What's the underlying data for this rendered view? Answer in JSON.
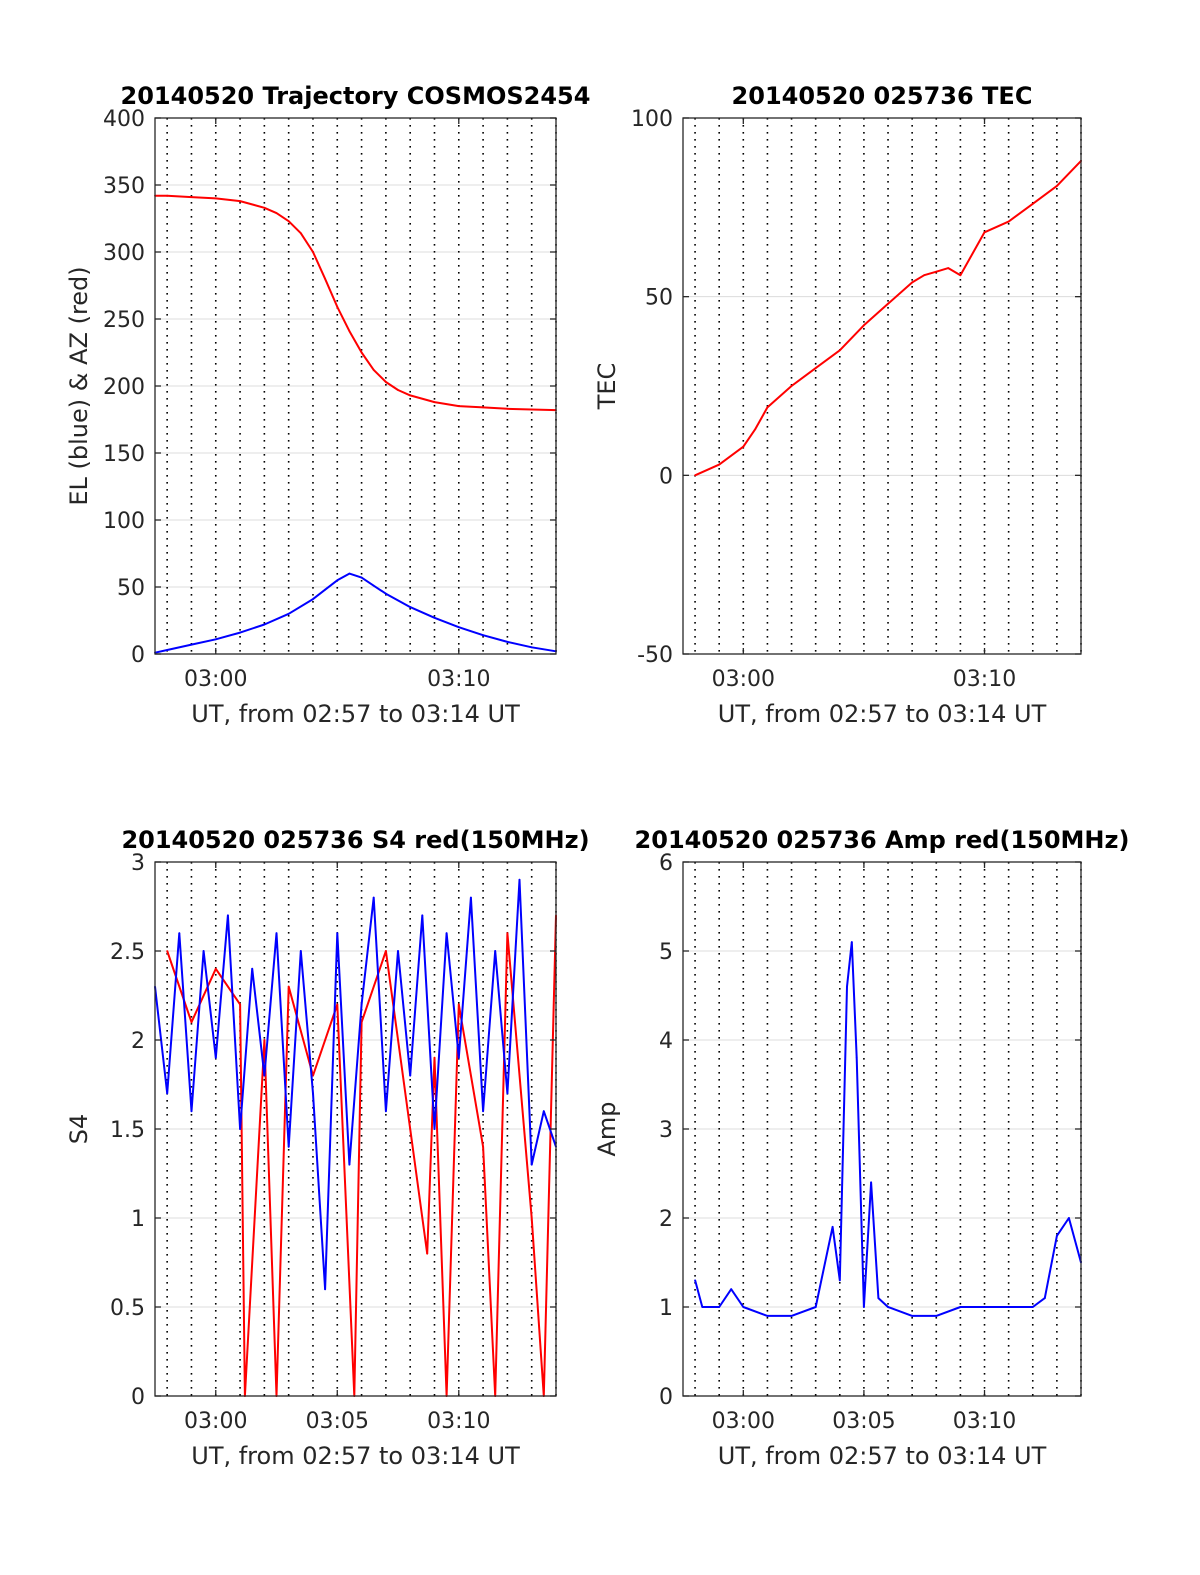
{
  "chart_data": [
    {
      "type": "line",
      "title": "20140520 Trajectory COSMOS2454",
      "xlabel": "UT, from 02:57 to 03:14 UT",
      "ylabel": "EL (blue) & AZ (red)",
      "xlim": [
        177.5,
        194
      ],
      "ylim": [
        0,
        400
      ],
      "yticks": [
        0,
        50,
        100,
        150,
        200,
        250,
        300,
        350,
        400
      ],
      "xticks": [
        {
          "value": 180,
          "label": "03:00"
        },
        {
          "value": 190,
          "label": "03:10"
        }
      ],
      "grid": "horizontal major, dotted vertical every minute",
      "series": [
        {
          "color": "#ff0000",
          "x": [
            177.5,
            178,
            179,
            180,
            181,
            182,
            182.5,
            183,
            183.5,
            184,
            184.5,
            185,
            185.5,
            186,
            186.5,
            187,
            187.5,
            188,
            189,
            190,
            191,
            192,
            193,
            194
          ],
          "values": [
            342,
            342,
            341,
            340,
            338,
            333,
            329,
            323,
            314,
            300,
            280,
            259,
            241,
            225,
            212,
            203,
            197,
            193,
            188,
            185,
            184,
            183,
            182.5,
            182
          ]
        },
        {
          "color": "#0000ff",
          "x": [
            177.5,
            178,
            179,
            180,
            181,
            182,
            183,
            184,
            184.5,
            185,
            185.5,
            186,
            186.5,
            187,
            188,
            189,
            190,
            191,
            192,
            193,
            194
          ],
          "values": [
            1,
            3,
            7,
            11,
            16,
            22,
            30,
            41,
            48,
            55,
            60,
            57,
            51,
            45,
            35,
            27,
            20,
            14,
            9,
            5,
            2
          ]
        }
      ]
    },
    {
      "type": "line",
      "title": "20140520 025736 TEC",
      "xlabel": "UT, from 02:57 to 03:14 UT",
      "ylabel": "TEC",
      "xlim": [
        177.5,
        194
      ],
      "ylim": [
        -50,
        100
      ],
      "yticks": [
        -50,
        0,
        50,
        100
      ],
      "xticks": [
        {
          "value": 180,
          "label": "03:00"
        },
        {
          "value": 190,
          "label": "03:10"
        }
      ],
      "grid": "horizontal major, dotted vertical every minute",
      "series": [
        {
          "color": "#ff0000",
          "x": [
            178,
            179,
            180,
            180.5,
            181,
            182,
            183,
            184,
            185,
            186,
            187,
            187.5,
            188,
            188.5,
            189,
            190,
            191,
            192,
            193,
            194
          ],
          "values": [
            0,
            3,
            8,
            13,
            19,
            25,
            30,
            35,
            42,
            48,
            54,
            56,
            57,
            58,
            56,
            68,
            71,
            76,
            81,
            88
          ]
        }
      ]
    },
    {
      "type": "line",
      "title": "20140520 025736 S4 red(150MHz)",
      "xlabel": "UT, from 02:57 to 03:14 UT",
      "ylabel": "S4",
      "xlim": [
        177.5,
        194
      ],
      "ylim": [
        0,
        3
      ],
      "yticks": [
        0,
        0.5,
        1,
        1.5,
        2,
        2.5,
        3
      ],
      "xticks": [
        {
          "value": 180,
          "label": "03:00"
        },
        {
          "value": 185,
          "label": "03:05"
        },
        {
          "value": 190,
          "label": "03:10"
        }
      ],
      "grid": "horizontal major, dotted vertical every minute",
      "series": [
        {
          "color": "#ff0000",
          "x": [
            178,
            179,
            180,
            181,
            181.2,
            182,
            182.5,
            183,
            184,
            185,
            185.7,
            186,
            187,
            188,
            188.7,
            189,
            189.5,
            190,
            191,
            191.5,
            192,
            193,
            193.5,
            194
          ],
          "values": [
            2.5,
            2.1,
            2.4,
            2.2,
            0,
            2.0,
            0,
            2.3,
            1.8,
            2.2,
            0,
            2.1,
            2.5,
            1.5,
            0.8,
            1.9,
            0,
            2.2,
            1.4,
            0,
            2.6,
            1.0,
            0,
            2.7
          ]
        },
        {
          "color": "#0000ff",
          "x": [
            177.5,
            178,
            178.5,
            179,
            179.5,
            180,
            180.5,
            181,
            181.5,
            182,
            182.5,
            183,
            183.5,
            184,
            184.5,
            185,
            185.5,
            186,
            186.5,
            187,
            187.5,
            188,
            188.5,
            189,
            189.5,
            190,
            190.5,
            191,
            191.5,
            192,
            192.5,
            193,
            193.5,
            194
          ],
          "values": [
            2.3,
            1.7,
            2.6,
            1.6,
            2.5,
            1.9,
            2.7,
            1.5,
            2.4,
            1.8,
            2.6,
            1.4,
            2.5,
            1.7,
            0.6,
            2.6,
            1.3,
            2.2,
            2.8,
            1.6,
            2.5,
            1.8,
            2.7,
            1.5,
            2.6,
            1.9,
            2.8,
            1.6,
            2.5,
            1.7,
            2.9,
            1.3,
            1.6,
            1.4
          ]
        }
      ]
    },
    {
      "type": "line",
      "title": "20140520 025736 Amp red(150MHz)",
      "xlabel": "UT, from 02:57 to 03:14 UT",
      "ylabel": "Amp",
      "xlim": [
        177.5,
        194
      ],
      "ylim": [
        0,
        6
      ],
      "yticks": [
        0,
        1,
        2,
        3,
        4,
        5,
        6
      ],
      "xticks": [
        {
          "value": 180,
          "label": "03:00"
        },
        {
          "value": 185,
          "label": "03:05"
        },
        {
          "value": 190,
          "label": "03:10"
        }
      ],
      "grid": "horizontal major, dotted vertical every minute",
      "series": [
        {
          "color": "#0000ff",
          "x": [
            178,
            178.3,
            179,
            179.5,
            180,
            181,
            182,
            183,
            183.7,
            184,
            184.3,
            184.5,
            184.7,
            185,
            185.3,
            185.6,
            186,
            187,
            188,
            189,
            190,
            191,
            192,
            192.5,
            193,
            193.5,
            194
          ],
          "values": [
            1.3,
            1.0,
            1.0,
            1.2,
            1.0,
            0.9,
            0.9,
            1.0,
            1.9,
            1.3,
            4.6,
            5.1,
            3.8,
            1.0,
            2.4,
            1.1,
            1.0,
            0.9,
            0.9,
            1.0,
            1.0,
            1.0,
            1.0,
            1.1,
            1.8,
            2.0,
            1.5
          ]
        }
      ]
    }
  ]
}
